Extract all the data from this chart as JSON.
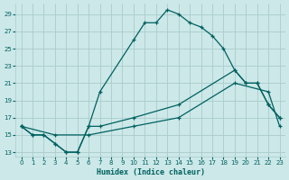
{
  "xlabel": "Humidex (Indice chaleur)",
  "background_color": "#cce8e8",
  "grid_color": "#aacccc",
  "line_color": "#006060",
  "xlim": [
    -0.5,
    23.5
  ],
  "ylim": [
    12.5,
    30.2
  ],
  "xticks": [
    0,
    1,
    2,
    3,
    4,
    5,
    6,
    7,
    8,
    9,
    10,
    11,
    12,
    13,
    14,
    15,
    16,
    17,
    18,
    19,
    20,
    21,
    22,
    23
  ],
  "yticks": [
    13,
    15,
    17,
    19,
    21,
    23,
    25,
    27,
    29
  ],
  "line1_x": [
    0,
    1,
    2,
    3,
    4,
    5,
    6,
    7,
    10,
    11,
    12,
    13,
    14,
    15,
    16,
    17,
    18,
    19,
    20,
    21,
    22,
    23
  ],
  "line1_y": [
    16,
    15,
    15,
    14,
    13,
    13,
    16,
    20,
    26,
    28,
    28,
    29.5,
    29,
    28,
    27.5,
    26.5,
    25,
    22.5,
    21,
    21,
    18.5,
    17
  ],
  "line2_x": [
    0,
    1,
    2,
    3,
    4,
    5,
    6,
    7,
    10,
    14,
    19,
    20,
    21,
    22,
    23
  ],
  "line2_y": [
    16,
    15,
    15,
    14,
    13,
    13,
    16,
    16,
    17,
    18.5,
    22.5,
    21,
    21,
    18.5,
    17
  ],
  "line3_x": [
    0,
    3,
    6,
    10,
    14,
    19,
    22,
    23
  ],
  "line3_y": [
    16,
    15,
    15,
    16,
    17,
    21,
    20,
    16
  ]
}
